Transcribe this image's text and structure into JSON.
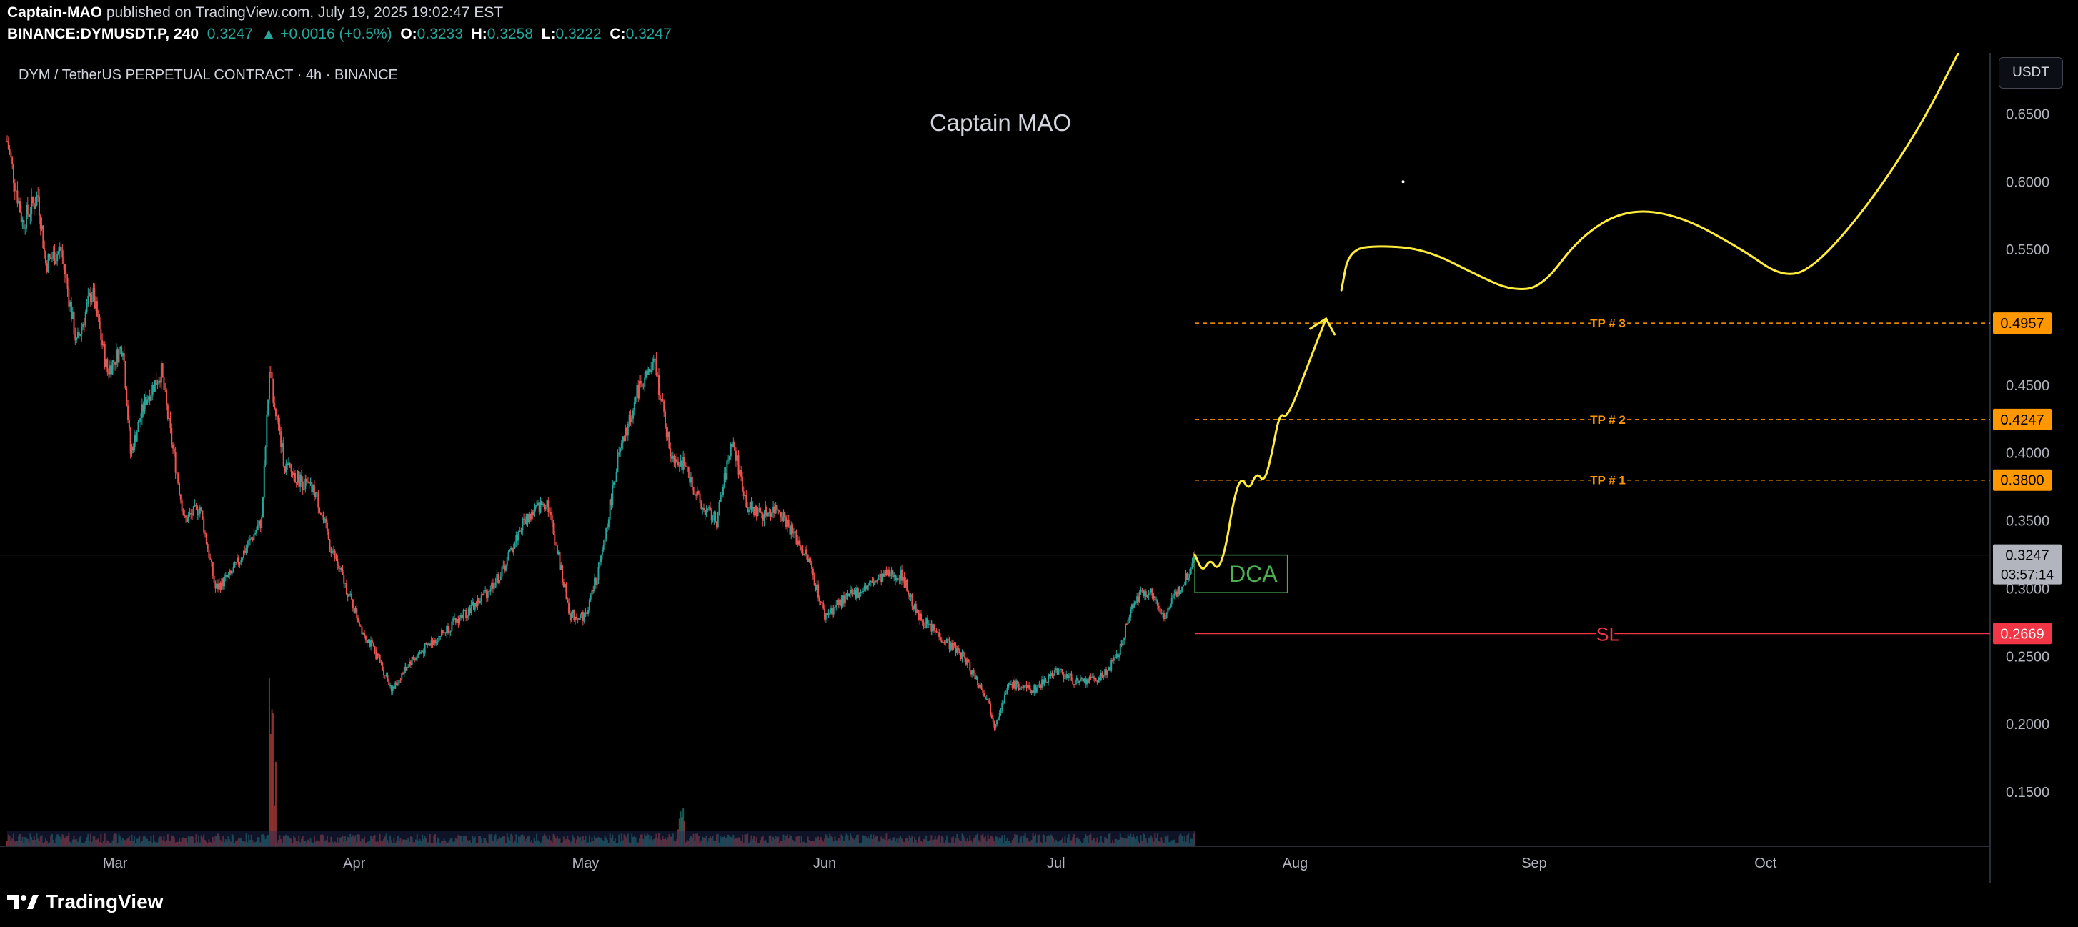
{
  "header": {
    "author": "Captain-MAO",
    "published_text": "published on TradingView.com, July 19, 2025 19:02:47 EST",
    "symbol": "BINANCE:DYMUSDT.P, 240",
    "last": "0.3247",
    "change": "▲ +0.0016 (+0.5%)",
    "o_label": "O:",
    "o": "0.3233",
    "h_label": "H:",
    "h": "0.3258",
    "l_label": "L:",
    "l": "0.3222",
    "c_label": "C:",
    "c": "0.3247"
  },
  "footer": {
    "brand": "TradingView"
  },
  "currency_button": "USDT",
  "colors": {
    "background": "#000000",
    "up": "#26a69a",
    "down": "#ef5350",
    "projection": "#ffeb3b",
    "tp": "#ff9800",
    "sl": "#f23645",
    "dca": "#4caf50",
    "last_price_tag": "#b2b5be"
  },
  "chart_data": {
    "type": "candlestick",
    "title": "DYM / TetherUS PERPETUAL CONTRACT · 4h · BINANCE",
    "watermark": "Captain MAO",
    "xlabel": "",
    "ylabel": "",
    "x_ticks": [
      "Mar",
      "Apr",
      "May",
      "Jun",
      "Jul",
      "Aug",
      "Sep",
      "Oct"
    ],
    "y_ticks": [
      "0.6500",
      "0.6000",
      "0.5500",
      "0.4500",
      "0.4000",
      "0.3500",
      "0.3000",
      "0.2500",
      "0.2000",
      "0.1500"
    ],
    "ylim": [
      0.11,
      0.695
    ],
    "grid": false,
    "price_path": [
      [
        "2025-02-15",
        0.63
      ],
      [
        "2025-02-17",
        0.57
      ],
      [
        "2025-02-19",
        0.59
      ],
      [
        "2025-02-20",
        0.54
      ],
      [
        "2025-02-22",
        0.55
      ],
      [
        "2025-02-24",
        0.48
      ],
      [
        "2025-02-26",
        0.52
      ],
      [
        "2025-02-28",
        0.46
      ],
      [
        "2025-03-02",
        0.48
      ],
      [
        "2025-03-03",
        0.4
      ],
      [
        "2025-03-05",
        0.44
      ],
      [
        "2025-03-07",
        0.46
      ],
      [
        "2025-03-08",
        0.42
      ],
      [
        "2025-03-10",
        0.35
      ],
      [
        "2025-03-12",
        0.36
      ],
      [
        "2025-03-14",
        0.3
      ],
      [
        "2025-03-16",
        0.31
      ],
      [
        "2025-03-18",
        0.33
      ],
      [
        "2025-03-20",
        0.35
      ],
      [
        "2025-03-21",
        0.46
      ],
      [
        "2025-03-23",
        0.39
      ],
      [
        "2025-03-25",
        0.38
      ],
      [
        "2025-03-27",
        0.37
      ],
      [
        "2025-03-29",
        0.33
      ],
      [
        "2025-03-31",
        0.3
      ],
      [
        "2025-04-02",
        0.27
      ],
      [
        "2025-04-04",
        0.25
      ],
      [
        "2025-04-06",
        0.225
      ],
      [
        "2025-04-08",
        0.245
      ],
      [
        "2025-04-11",
        0.26
      ],
      [
        "2025-04-14",
        0.275
      ],
      [
        "2025-04-17",
        0.29
      ],
      [
        "2025-04-20",
        0.31
      ],
      [
        "2025-04-23",
        0.35
      ],
      [
        "2025-04-26",
        0.365
      ],
      [
        "2025-04-29",
        0.28
      ],
      [
        "2025-05-01",
        0.28
      ],
      [
        "2025-05-03",
        0.32
      ],
      [
        "2025-05-05",
        0.39
      ],
      [
        "2025-05-08",
        0.45
      ],
      [
        "2025-05-10",
        0.465
      ],
      [
        "2025-05-12",
        0.4
      ],
      [
        "2025-05-14",
        0.39
      ],
      [
        "2025-05-16",
        0.36
      ],
      [
        "2025-05-18",
        0.35
      ],
      [
        "2025-05-20",
        0.41
      ],
      [
        "2025-05-22",
        0.36
      ],
      [
        "2025-05-24",
        0.355
      ],
      [
        "2025-05-26",
        0.36
      ],
      [
        "2025-05-28",
        0.34
      ],
      [
        "2025-05-30",
        0.32
      ],
      [
        "2025-06-01",
        0.28
      ],
      [
        "2025-06-03",
        0.29
      ],
      [
        "2025-06-06",
        0.3
      ],
      [
        "2025-06-09",
        0.31
      ],
      [
        "2025-06-11",
        0.31
      ],
      [
        "2025-06-13",
        0.28
      ],
      [
        "2025-06-16",
        0.265
      ],
      [
        "2025-06-19",
        0.25
      ],
      [
        "2025-06-22",
        0.22
      ],
      [
        "2025-06-23",
        0.2
      ],
      [
        "2025-06-25",
        0.23
      ],
      [
        "2025-06-28",
        0.225
      ],
      [
        "2025-07-01",
        0.24
      ],
      [
        "2025-07-04",
        0.23
      ],
      [
        "2025-07-07",
        0.235
      ],
      [
        "2025-07-09",
        0.25
      ],
      [
        "2025-07-11",
        0.29
      ],
      [
        "2025-07-13",
        0.3
      ],
      [
        "2025-07-15",
        0.28
      ],
      [
        "2025-07-17",
        0.3
      ],
      [
        "2025-07-18",
        0.31
      ],
      [
        "2025-07-19",
        0.3247
      ]
    ],
    "volume_spikes": [
      [
        "2025-03-21",
        "high"
      ],
      [
        "2025-05-13",
        "medium"
      ],
      [
        "2025-07-19",
        "medium"
      ]
    ],
    "levels": [
      {
        "label": "TP # 3",
        "value": 0.4957,
        "tag": "0.4957",
        "style": "dashed"
      },
      {
        "label": "TP # 2",
        "value": 0.4247,
        "tag": "0.4247",
        "style": "dashed"
      },
      {
        "label": "TP # 1",
        "value": 0.38,
        "tag": "0.3800",
        "style": "dashed"
      },
      {
        "label": "SL",
        "value": 0.2669,
        "tag": "0.2669",
        "style": "solid"
      }
    ],
    "current_price": {
      "value": 0.3247,
      "tag": "0.3247",
      "countdown": "03:57:14"
    },
    "dca_zone": {
      "label": "DCA",
      "from": 0.3247,
      "to": 0.297,
      "start": "2025-07-19",
      "end": "2025-07-31"
    },
    "projection_path": [
      [
        "2025-07-19",
        0.325
      ],
      [
        "2025-07-20",
        0.312
      ],
      [
        "2025-07-21",
        0.322
      ],
      [
        "2025-07-22",
        0.313
      ],
      [
        "2025-07-23",
        0.33
      ],
      [
        "2025-07-24",
        0.365
      ],
      [
        "2025-07-25",
        0.383
      ],
      [
        "2025-07-26",
        0.372
      ],
      [
        "2025-07-27",
        0.386
      ],
      [
        "2025-07-28",
        0.378
      ],
      [
        "2025-07-29",
        0.4
      ],
      [
        "2025-07-30",
        0.43
      ],
      [
        "2025-07-31",
        0.425
      ],
      [
        "2025-08-03",
        0.47
      ],
      [
        "2025-08-05",
        0.499
      ],
      [
        "2025-08-07",
        0.52
      ],
      [
        "2025-08-08",
        0.55
      ],
      [
        "2025-08-12",
        0.553
      ],
      [
        "2025-08-18",
        0.55
      ],
      [
        "2025-08-25",
        0.53
      ],
      [
        "2025-08-29",
        0.52
      ],
      [
        "2025-09-02",
        0.522
      ],
      [
        "2025-09-07",
        0.56
      ],
      [
        "2025-09-13",
        0.58
      ],
      [
        "2025-09-20",
        0.575
      ],
      [
        "2025-09-28",
        0.55
      ],
      [
        "2025-10-03",
        0.53
      ],
      [
        "2025-10-07",
        0.535
      ],
      [
        "2025-10-14",
        0.58
      ],
      [
        "2025-10-21",
        0.64
      ],
      [
        "2025-10-26",
        0.695
      ]
    ]
  }
}
